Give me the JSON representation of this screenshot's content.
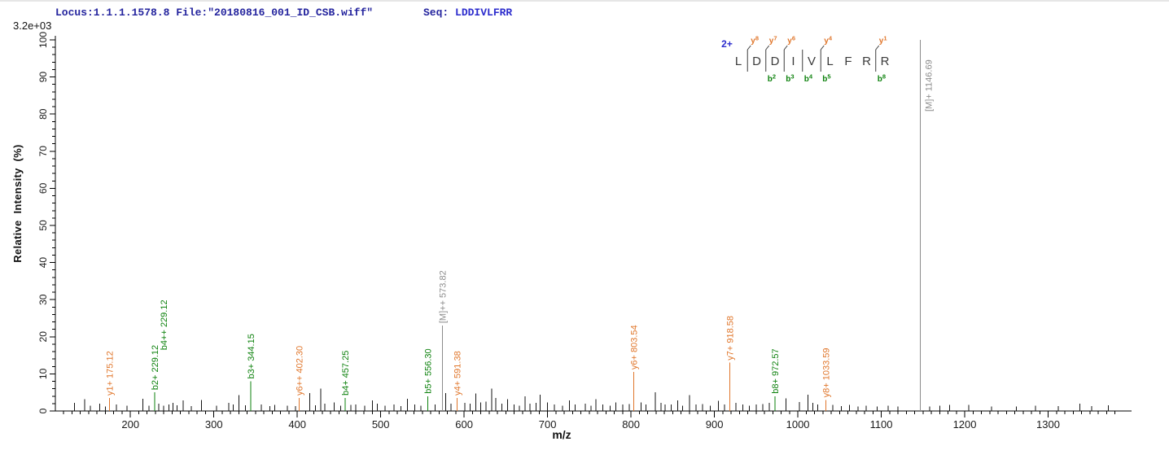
{
  "header": {
    "locus_file": "Locus:1.1.1.1578.8 File:\"20180816_001_ID_CSB.wiff\"",
    "seq_prefix": "Seq: ",
    "seq_value": "LDDIVLFRR",
    "scale": "3.2e+03"
  },
  "colors": {
    "header_text": "#24249e",
    "sequence_text": "#2c2ccd",
    "y_ion": "#e0762b",
    "b_ion": "#0e820e",
    "precursor": "#8c8c8c",
    "peak": "#151515",
    "axis": "#000000",
    "residue_text": "#3b3b3b",
    "tick_label": "#1a1a1a"
  },
  "peptide": {
    "charge": "2+",
    "residues": [
      "L",
      "D",
      "D",
      "I",
      "V",
      "L",
      "F",
      "R",
      "R"
    ],
    "cleavages": [
      {
        "after": 1,
        "y": "y8"
      },
      {
        "after": 2,
        "y": "y7",
        "b": "b2"
      },
      {
        "after": 3,
        "y": "y6",
        "b": "b3"
      },
      {
        "after": 4,
        "b": "b4"
      },
      {
        "after": 5,
        "y": "y4",
        "b": "b5"
      },
      {
        "after": 8,
        "y": "y1",
        "b": "b8"
      }
    ]
  },
  "chart_data": {
    "type": "bar",
    "subtype": "ms2-mass-spectrum",
    "title": "",
    "xlabel": "m/z",
    "ylabel": "Relative Intensity (%)",
    "intensity_scale": "3.2e+03",
    "xlim": [
      110,
      1400
    ],
    "ylim": [
      0,
      100
    ],
    "grid": false,
    "x_major_ticks": [
      200,
      300,
      400,
      500,
      600,
      700,
      800,
      900,
      1000,
      1100,
      1200,
      1300
    ],
    "x_minor_tick_step": 10,
    "x_minor_range": [
      120,
      1380
    ],
    "y_major_tick_step": 10,
    "y_minor_tick_step": 2,
    "labeled_peaks": [
      {
        "mz": 175.12,
        "intensity": 3.5,
        "label": "y1+ 175.12",
        "ion": "y"
      },
      {
        "mz": 229.12,
        "intensity": 5,
        "label": "b2+ 229.12",
        "label2": "b4++ 229.12",
        "ion": "b"
      },
      {
        "mz": 344.15,
        "intensity": 8,
        "label": "b3+ 344.15",
        "ion": "b"
      },
      {
        "mz": 402.3,
        "intensity": 3.5,
        "label": "y6++ 402.30",
        "ion": "y"
      },
      {
        "mz": 457.25,
        "intensity": 3.5,
        "label": "b4+ 457.25",
        "ion": "b"
      },
      {
        "mz": 556.3,
        "intensity": 4,
        "label": "b5+ 556.30",
        "ion": "b"
      },
      {
        "mz": 573.82,
        "intensity": 23,
        "label": "[M]++ 573.82",
        "ion": "precursor"
      },
      {
        "mz": 591.38,
        "intensity": 3.5,
        "label": "y4+ 591.38",
        "ion": "y"
      },
      {
        "mz": 803.54,
        "intensity": 10.5,
        "label": "y6+ 803.54",
        "ion": "y"
      },
      {
        "mz": 918.58,
        "intensity": 13,
        "label": "y7+ 918.58",
        "ion": "y"
      },
      {
        "mz": 972.57,
        "intensity": 4,
        "label": "b8+ 972.57",
        "ion": "b"
      },
      {
        "mz": 1033.59,
        "intensity": 3,
        "label": "y8+ 1033.59",
        "ion": "y"
      },
      {
        "mz": 1146.69,
        "intensity": 100,
        "label": "[M]+ 1146.69",
        "ion": "precursor",
        "label_dx": 14,
        "label_dy": 88
      }
    ],
    "unlabeled_peaks": [
      [
        133,
        2.2
      ],
      [
        145,
        3.2
      ],
      [
        152,
        1.4
      ],
      [
        163,
        2.0
      ],
      [
        170,
        1.2
      ],
      [
        183,
        1.8
      ],
      [
        196,
        1.4
      ],
      [
        215,
        3.3
      ],
      [
        222,
        1.4
      ],
      [
        234,
        2.0
      ],
      [
        240,
        1.4
      ],
      [
        246,
        1.8
      ],
      [
        251,
        2.2
      ],
      [
        256,
        1.5
      ],
      [
        263,
        2.8
      ],
      [
        273,
        1.3
      ],
      [
        285,
        3.0
      ],
      [
        303,
        1.4
      ],
      [
        318,
        2.2
      ],
      [
        323,
        1.8
      ],
      [
        330,
        4.3
      ],
      [
        338,
        1.5
      ],
      [
        357,
        1.8
      ],
      [
        367,
        1.3
      ],
      [
        373,
        1.6
      ],
      [
        388,
        1.4
      ],
      [
        398,
        1.3
      ],
      [
        415,
        4.8
      ],
      [
        422,
        1.5
      ],
      [
        428,
        6.0
      ],
      [
        433,
        2.0
      ],
      [
        444,
        2.3
      ],
      [
        452,
        1.4
      ],
      [
        464,
        1.6
      ],
      [
        470,
        1.8
      ],
      [
        481,
        1.4
      ],
      [
        490,
        2.8
      ],
      [
        496,
        2.0
      ],
      [
        505,
        1.4
      ],
      [
        516,
        1.8
      ],
      [
        524,
        1.3
      ],
      [
        532,
        3.3
      ],
      [
        541,
        1.8
      ],
      [
        548,
        1.4
      ],
      [
        565,
        1.8
      ],
      [
        578,
        4.8
      ],
      [
        584,
        2.0
      ],
      [
        601,
        2.2
      ],
      [
        607,
        2.0
      ],
      [
        614,
        4.7
      ],
      [
        620,
        2.3
      ],
      [
        626,
        2.5
      ],
      [
        633,
        6.0
      ],
      [
        638,
        3.5
      ],
      [
        645,
        2.0
      ],
      [
        652,
        3.2
      ],
      [
        660,
        1.8
      ],
      [
        666,
        1.4
      ],
      [
        673,
        4.0
      ],
      [
        679,
        2.0
      ],
      [
        686,
        2.2
      ],
      [
        691,
        4.4
      ],
      [
        700,
        2.3
      ],
      [
        708,
        1.7
      ],
      [
        718,
        1.4
      ],
      [
        726,
        2.8
      ],
      [
        733,
        1.8
      ],
      [
        745,
        2.0
      ],
      [
        752,
        1.4
      ],
      [
        758,
        3.2
      ],
      [
        766,
        1.7
      ],
      [
        775,
        1.4
      ],
      [
        782,
        2.3
      ],
      [
        790,
        1.7
      ],
      [
        798,
        1.9
      ],
      [
        812,
        2.3
      ],
      [
        818,
        1.7
      ],
      [
        829,
        5.0
      ],
      [
        836,
        2.2
      ],
      [
        841,
        1.7
      ],
      [
        848,
        1.8
      ],
      [
        856,
        2.8
      ],
      [
        862,
        1.4
      ],
      [
        870,
        4.3
      ],
      [
        878,
        1.7
      ],
      [
        886,
        1.9
      ],
      [
        895,
        1.4
      ],
      [
        905,
        2.7
      ],
      [
        912,
        1.7
      ],
      [
        926,
        2.2
      ],
      [
        934,
        1.7
      ],
      [
        942,
        1.4
      ],
      [
        950,
        1.7
      ],
      [
        958,
        1.9
      ],
      [
        966,
        2.2
      ],
      [
        986,
        3.4
      ],
      [
        1002,
        2.4
      ],
      [
        1012,
        4.4
      ],
      [
        1018,
        2.2
      ],
      [
        1024,
        1.7
      ],
      [
        1042,
        1.6
      ],
      [
        1052,
        1.3
      ],
      [
        1062,
        1.6
      ],
      [
        1072,
        1.2
      ],
      [
        1082,
        1.4
      ],
      [
        1095,
        1.2
      ],
      [
        1108,
        1.4
      ],
      [
        1120,
        1.2
      ],
      [
        1158,
        1.2
      ],
      [
        1170,
        1.4
      ],
      [
        1182,
        1.6
      ],
      [
        1205,
        1.6
      ],
      [
        1232,
        1.2
      ],
      [
        1262,
        1.2
      ],
      [
        1285,
        1.4
      ],
      [
        1312,
        1.3
      ],
      [
        1338,
        2.0
      ],
      [
        1352,
        1.3
      ],
      [
        1372,
        1.5
      ]
    ]
  }
}
